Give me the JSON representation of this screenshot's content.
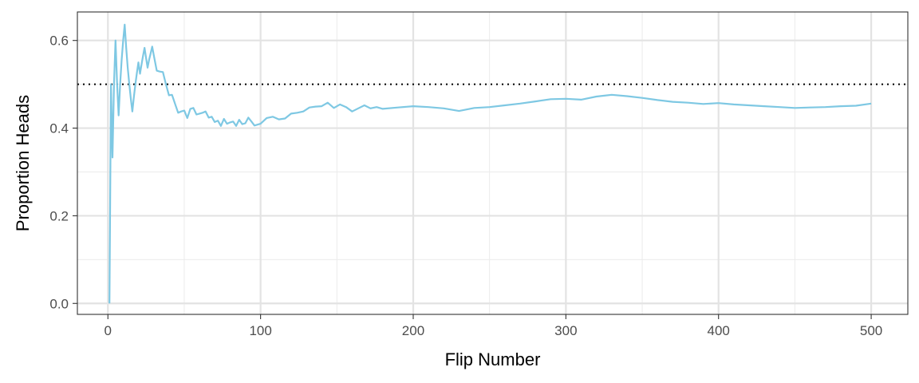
{
  "chart_data": {
    "type": "line",
    "xlabel": "Flip Number",
    "ylabel": "Proportion Heads",
    "xlim": [
      -20,
      524
    ],
    "ylim": [
      -0.025,
      0.665
    ],
    "x_ticks": [
      0,
      100,
      200,
      300,
      400,
      500
    ],
    "y_ticks": [
      0.0,
      0.2,
      0.4,
      0.6
    ],
    "y_tick_labels": [
      "0.0",
      "0.2",
      "0.4",
      "0.6"
    ],
    "x_minor_ticks": [
      50,
      150,
      250,
      350,
      450
    ],
    "y_minor_ticks": [
      0.1,
      0.3,
      0.5
    ],
    "grid": true,
    "reference_line": {
      "y": 0.5,
      "style": "dotted",
      "color": "#000000"
    },
    "series": [
      {
        "color": "#7ec8e3",
        "x": [
          1,
          2,
          3,
          4,
          5,
          6,
          7,
          8,
          9,
          10,
          11,
          12,
          13,
          14,
          15,
          16,
          17,
          18,
          19,
          20,
          21,
          22,
          23,
          24,
          25,
          26,
          27,
          28,
          29,
          30,
          32,
          34,
          36,
          38,
          40,
          42,
          44,
          46,
          48,
          50,
          52,
          54,
          56,
          58,
          60,
          62,
          64,
          66,
          68,
          70,
          72,
          74,
          76,
          78,
          80,
          82,
          84,
          86,
          88,
          90,
          92,
          94,
          96,
          98,
          100,
          104,
          108,
          112,
          116,
          120,
          124,
          128,
          132,
          136,
          140,
          144,
          148,
          152,
          156,
          160,
          164,
          168,
          172,
          176,
          180,
          190,
          200,
          210,
          220,
          230,
          240,
          250,
          260,
          270,
          280,
          290,
          300,
          310,
          320,
          330,
          340,
          350,
          360,
          370,
          380,
          390,
          400,
          410,
          420,
          430,
          440,
          450,
          460,
          470,
          480,
          490,
          500
        ],
        "y": [
          0.0,
          0.5,
          0.333,
          0.5,
          0.6,
          0.5,
          0.429,
          0.5,
          0.556,
          0.6,
          0.636,
          0.583,
          0.538,
          0.5,
          0.467,
          0.438,
          0.471,
          0.5,
          0.526,
          0.55,
          0.524,
          0.545,
          0.565,
          0.583,
          0.56,
          0.538,
          0.556,
          0.571,
          0.586,
          0.567,
          0.531,
          0.529,
          0.528,
          0.5,
          0.475,
          0.476,
          0.455,
          0.435,
          0.438,
          0.44,
          0.423,
          0.444,
          0.446,
          0.431,
          0.433,
          0.435,
          0.438,
          0.424,
          0.426,
          0.414,
          0.417,
          0.405,
          0.421,
          0.41,
          0.413,
          0.415,
          0.405,
          0.419,
          0.409,
          0.411,
          0.424,
          0.415,
          0.406,
          0.408,
          0.41,
          0.423,
          0.426,
          0.42,
          0.422,
          0.433,
          0.435,
          0.438,
          0.447,
          0.449,
          0.45,
          0.458,
          0.446,
          0.454,
          0.448,
          0.438,
          0.445,
          0.452,
          0.445,
          0.448,
          0.444,
          0.447,
          0.45,
          0.448,
          0.445,
          0.439,
          0.446,
          0.448,
          0.452,
          0.456,
          0.461,
          0.466,
          0.467,
          0.465,
          0.472,
          0.476,
          0.473,
          0.469,
          0.464,
          0.46,
          0.458,
          0.455,
          0.457,
          0.454,
          0.452,
          0.45,
          0.448,
          0.446,
          0.447,
          0.448,
          0.45,
          0.451,
          0.456
        ]
      }
    ]
  }
}
